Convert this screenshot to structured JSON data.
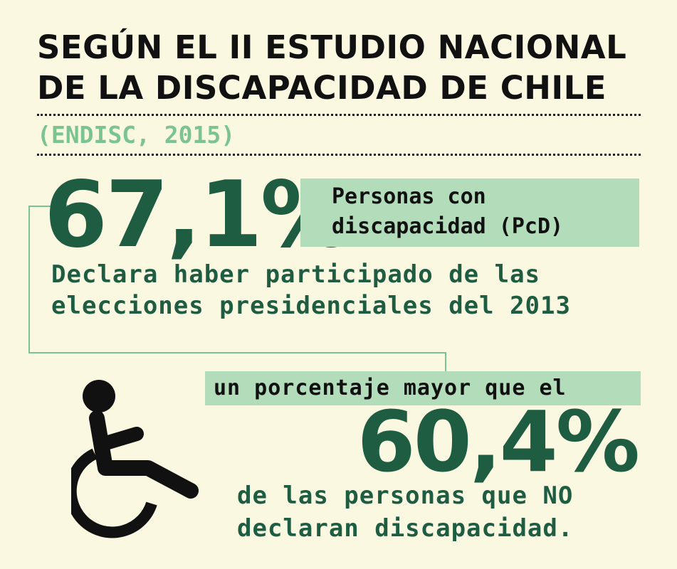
{
  "header": {
    "title": "SEGÚN EL II ESTUDIO NACIONAL\nDE LA DISCAPACIDAD DE CHILE",
    "source": "(ENDISC, 2015)"
  },
  "stat_pcd": {
    "value": "67,1%",
    "label": "Personas con\ndiscapacidad (PcD)",
    "description": "Declara haber participado de las elecciones presidenciales del 2013"
  },
  "comparison": {
    "connector": "un porcentaje mayor que el",
    "value": "60,4%",
    "description": "de las personas que NO\ndeclaran discapacidad."
  },
  "colors": {
    "background": "#faf8e1",
    "dark_green": "#1f5d43",
    "light_green": "#b3dcbb",
    "accent_green": "#7cc48f",
    "ink": "#111111"
  },
  "icons": {
    "wheelchair": "wheelchair-icon",
    "arrow": "arrow-right-icon"
  }
}
